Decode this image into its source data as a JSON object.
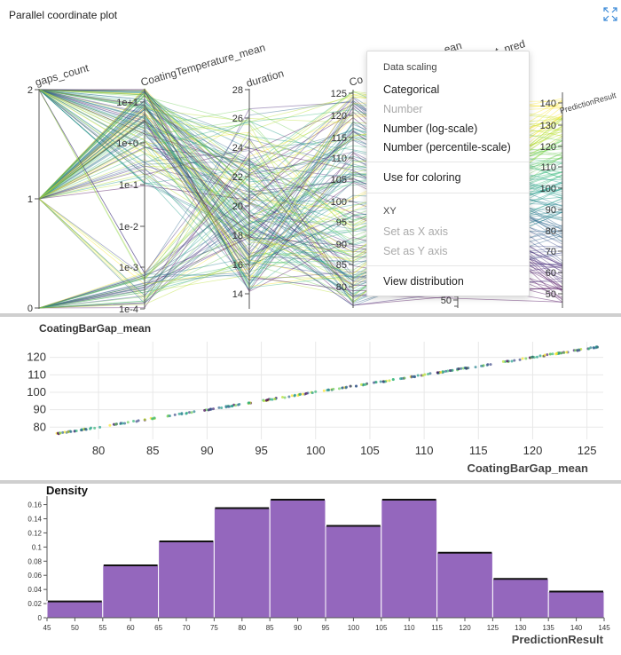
{
  "panel1": {
    "title": "Parallel coordinate plot",
    "axes": [
      {
        "name": "gaps_count",
        "label": "gaps_count",
        "ticks": [
          "2",
          "1",
          "0"
        ]
      },
      {
        "name": "CoatingTemperature_mean",
        "label": "CoatingTemperature_mean",
        "ticks": [
          "1e+1",
          "1e+0",
          "1e-1",
          "1e-2",
          "1e-3",
          "1e-4"
        ]
      },
      {
        "name": "duration",
        "label": "duration",
        "ticks": [
          "28",
          "26",
          "24",
          "22",
          "20",
          "18",
          "16",
          "14"
        ]
      },
      {
        "name": "CoatingBarGap_mean",
        "label": "Co",
        "label_tail": "ean",
        "ticks": [
          "125",
          "120",
          "115",
          "110",
          "105",
          "100",
          "95",
          "90",
          "85",
          "80"
        ]
      },
      {
        "name": "_pred",
        "label": "t_pred",
        "ticks": [
          "50"
        ]
      },
      {
        "name": "PredictionResult",
        "label": "PredictionResult",
        "ticks": [
          "140",
          "130",
          "120",
          "110",
          "100",
          "90",
          "80",
          "70",
          "60",
          "50"
        ]
      }
    ]
  },
  "menu": {
    "header1": "Data scaling",
    "items1": [
      {
        "label": "Categorical",
        "disabled": false
      },
      {
        "label": "Number",
        "disabled": true
      },
      {
        "label": "Number (log-scale)",
        "disabled": false
      },
      {
        "label": "Number (percentile-scale)",
        "disabled": false
      }
    ],
    "use_coloring": "Use for coloring",
    "header2": "XY",
    "items2": [
      {
        "label": "Set as X axis",
        "disabled": true
      },
      {
        "label": "Set as Y axis",
        "disabled": true
      }
    ],
    "view_distribution": "View distribution"
  },
  "chart_data": [
    {
      "type": "scatter",
      "title": "CoatingBarGap_mean",
      "xlabel": "CoatingBarGap_mean",
      "ylabel": "CoatingBarGap_mean",
      "x_ticks": [
        80,
        85,
        90,
        95,
        100,
        105,
        110,
        115,
        120,
        125
      ],
      "y_ticks": [
        80,
        90,
        100,
        110,
        120
      ],
      "xlim": [
        75.5,
        126.5
      ],
      "ylim": [
        73,
        129
      ],
      "points_relation": "y = x",
      "x_range": [
        76,
        126
      ]
    },
    {
      "type": "bar",
      "title": "Density",
      "xlabel": "PredictionResult",
      "ylabel": "Density",
      "x_ticks": [
        45,
        50,
        55,
        60,
        65,
        70,
        75,
        80,
        85,
        90,
        95,
        100,
        105,
        110,
        115,
        120,
        125,
        130,
        135,
        140,
        145
      ],
      "y_ticks": [
        0,
        0.02,
        0.04,
        0.06,
        0.08,
        0.1,
        0.12,
        0.14,
        0.16
      ],
      "y_tick_labels": [
        "0",
        "0.02",
        "0.04",
        "0.06",
        "0.08",
        "0.1",
        "0.12",
        "0.14",
        "0.16"
      ],
      "ylim": [
        0,
        0.172
      ],
      "bin_edges": [
        45,
        55,
        65,
        75,
        85,
        95,
        105,
        115,
        125,
        135,
        145
      ],
      "values": [
        0.023,
        0.074,
        0.108,
        0.155,
        0.167,
        0.13,
        0.167,
        0.092,
        0.055,
        0.037
      ],
      "bar_color": "#9467bd"
    }
  ]
}
